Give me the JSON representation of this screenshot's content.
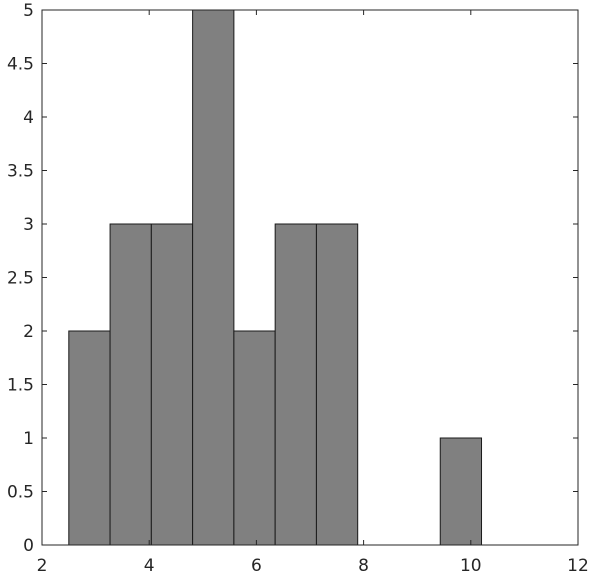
{
  "chart_data": {
    "type": "histogram",
    "bins": [
      2.5,
      3.27,
      4.04,
      4.81,
      5.58,
      6.35,
      7.12,
      7.89,
      8.66,
      9.43,
      10.2
    ],
    "counts": [
      2,
      3,
      3,
      5,
      2,
      3,
      3,
      0,
      0,
      1
    ],
    "color": "#808080",
    "xlim": [
      2,
      12
    ],
    "xticks": [
      2,
      4,
      6,
      8,
      10,
      12
    ],
    "ylim": [
      0,
      5
    ],
    "yticks": [
      0,
      0.5,
      1,
      1.5,
      2,
      2.5,
      3,
      3.5,
      4,
      4.5,
      5
    ]
  }
}
